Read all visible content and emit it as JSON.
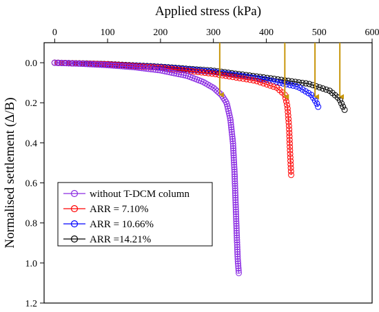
{
  "chart_data": {
    "type": "line",
    "xlabel": "Applied stress (kPa)",
    "ylabel": "Normalised settlement (Δ/B)",
    "xlim": [
      -20,
      600
    ],
    "ylim": [
      1.2,
      -0.1
    ],
    "y_inverted": true,
    "x_axis_position": "top",
    "x_ticks": [
      0,
      100,
      200,
      300,
      400,
      500,
      600
    ],
    "y_ticks": [
      0.0,
      0.2,
      0.4,
      0.6,
      0.8,
      1.0,
      1.2
    ],
    "x_tick_labels": [
      "0",
      "100",
      "200",
      "300",
      "400",
      "500",
      "600"
    ],
    "y_tick_labels": [
      "0.0",
      "0.2",
      "0.4",
      "0.6",
      "0.8",
      "1.0",
      "1.2"
    ],
    "legend_position": "bottom-left",
    "marker": "open-circle",
    "series": [
      {
        "name": "without T-DCM column",
        "color": "#8a2be2",
        "x": [
          0,
          50,
          100,
          150,
          200,
          250,
          280,
          300,
          315,
          325,
          332,
          337,
          340,
          342,
          344,
          346,
          348
        ],
        "y": [
          0.0,
          0.005,
          0.012,
          0.022,
          0.038,
          0.065,
          0.095,
          0.125,
          0.16,
          0.2,
          0.28,
          0.4,
          0.55,
          0.7,
          0.85,
          0.98,
          1.05
        ]
      },
      {
        "name": "ARR = 7.10%",
        "color": "#ff0000",
        "x": [
          0,
          100,
          200,
          300,
          380,
          420,
          435,
          440,
          443,
          445,
          447
        ],
        "y": [
          0.0,
          0.008,
          0.025,
          0.055,
          0.09,
          0.125,
          0.16,
          0.22,
          0.32,
          0.45,
          0.56
        ]
      },
      {
        "name": "ARR = 10.66%",
        "color": "#0000ff",
        "x": [
          0,
          100,
          200,
          300,
          400,
          460,
          485,
          495,
          498
        ],
        "y": [
          0.0,
          0.008,
          0.022,
          0.045,
          0.085,
          0.12,
          0.16,
          0.2,
          0.22
        ]
      },
      {
        "name": "ARR =14.21%",
        "color": "#000000",
        "x": [
          0,
          100,
          200,
          300,
          400,
          480,
          520,
          538,
          545,
          548
        ],
        "y": [
          0.0,
          0.007,
          0.02,
          0.04,
          0.075,
          0.105,
          0.14,
          0.18,
          0.22,
          0.235
        ]
      }
    ],
    "arrows": {
      "color": "#c8960c",
      "x": [
        312,
        435,
        492,
        539
      ],
      "y_from": [
        -0.1,
        -0.1,
        -0.1,
        -0.1
      ],
      "y_to": [
        0.16,
        0.17,
        0.17,
        0.17
      ]
    }
  }
}
